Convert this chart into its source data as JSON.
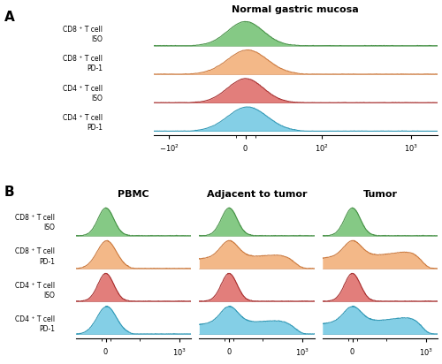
{
  "panel_A_title": "Normal gastric mucosa",
  "panel_B_titles": [
    "PBMC",
    "Adjacent to tumor",
    "Tumor"
  ],
  "y_labels": [
    "CD8 ⁺ T cell\nISO",
    "CD8 ⁺ T cell\nPD-1",
    "CD4 ⁺ T cell\nISO",
    "CD4 ⁺ T cell\nPD-1"
  ],
  "colors": [
    "#5cb85c",
    "#f0a060",
    "#d9534f",
    "#5bc0de"
  ],
  "edge_colors": [
    "#3a8a3a",
    "#c87030",
    "#a02020",
    "#2090b0"
  ],
  "alpha": 0.75,
  "background": "#FFFFFF",
  "label_fontsize": 5.5,
  "title_fontsize": 8.0
}
